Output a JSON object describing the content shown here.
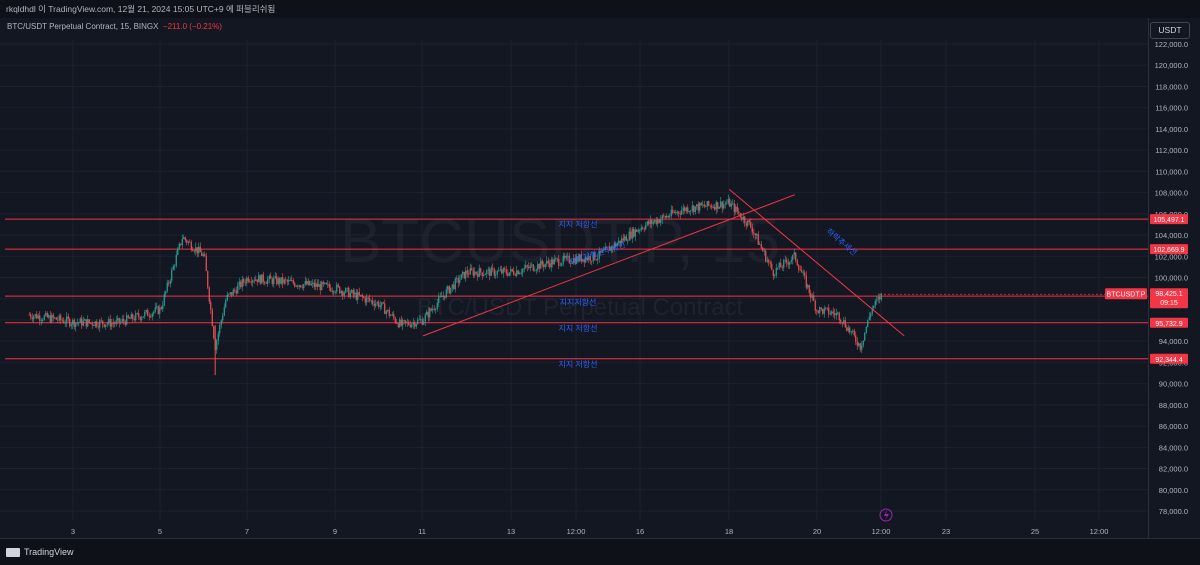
{
  "header": {
    "title": "rkqldhdl 이 TradingView.com, 12월 21, 2024 15:05 UTC+9 에 퍼블리쉬됨"
  },
  "symbol": {
    "label": "BTC/USDT Perpetual Contract, 15, BINGX",
    "change": "−211.0 (−0.21%)"
  },
  "watermark": {
    "main": "BTCUSDT.P, 15",
    "sub": "BTC/USDT Perpetual Contract"
  },
  "currency_button": "USDT",
  "footer": {
    "brand": "TradingView"
  },
  "colors": {
    "background": "#131722",
    "up": "#26a69a",
    "down": "#ef5350",
    "line": "#f23645",
    "annotation": "#2962ff"
  },
  "price_scale": {
    "ticks": [
      "122,000.0",
      "120,000.0",
      "118,000.0",
      "116,000.0",
      "114,000.0",
      "112,000.0",
      "110,000.0",
      "108,000.0",
      "106,000.0",
      "104,000.0",
      "102,000.0",
      "100,000.0",
      "98,000.0",
      "96,000.0",
      "94,000.0",
      "92,000.0",
      "90,000.0",
      "88,000.0",
      "86,000.0",
      "84,000.0",
      "82,000.0",
      "80,000.0",
      "78,000.0"
    ]
  },
  "time_scale": {
    "ticks": [
      "3",
      "5",
      "7",
      "9",
      "11",
      "13",
      "12:00",
      "16",
      "18",
      "20",
      "12:00",
      "23",
      "25",
      "12:00"
    ]
  },
  "price_labels": [
    {
      "text": "105,497.1",
      "value": 105497.1
    },
    {
      "text": "102,669.9",
      "value": 102669.9
    },
    {
      "text": "98,244.7",
      "value": 98244.7
    },
    {
      "text": "95,732.9",
      "value": 95732.9
    },
    {
      "text": "92,344.4",
      "value": 92344.4
    }
  ],
  "current_price": {
    "symbol": "BTCUSDT.P",
    "price": "98,425.1",
    "countdown": "09:15",
    "value": 98425.1
  },
  "annotations": [
    "지지 저항선",
    "지지저항선추세선",
    "지지저항선",
    "지지 저항선",
    "지지 저항선",
    "하락추세선"
  ],
  "chart_data": {
    "type": "candlestick",
    "symbol": "BTC/USDT Perpetual Contract",
    "interval": "15",
    "ylim": [
      77000,
      123000
    ],
    "horizontal_levels": [
      105497.1,
      102669.9,
      98244.7,
      95732.9,
      92344.4
    ],
    "trendlines": [
      {
        "name": "상승 추세선",
        "from": {
          "date": "Dec 11",
          "price": 94500
        },
        "to": {
          "date": "Dec 19 12:00",
          "price": 107800
        }
      },
      {
        "name": "하락추세선",
        "from": {
          "date": "Dec 18",
          "price": 108300
        },
        "to": {
          "date": "Dec 22",
          "price": 94500
        }
      }
    ],
    "price_path": [
      {
        "x": "Dec 2",
        "y": 96500
      },
      {
        "x": "Dec 3",
        "y": 95800
      },
      {
        "x": "Dec 4",
        "y": 95700
      },
      {
        "x": "Dec 5",
        "y": 97000
      },
      {
        "x": "Dec 5 12:00",
        "y": 103800
      },
      {
        "x": "Dec 6",
        "y": 102000
      },
      {
        "x": "Dec 6 06:00",
        "y": 93500
      },
      {
        "x": "Dec 6 12:00",
        "y": 98000
      },
      {
        "x": "Dec 7",
        "y": 100000
      },
      {
        "x": "Dec 8",
        "y": 99500
      },
      {
        "x": "Dec 9",
        "y": 99000
      },
      {
        "x": "Dec 10",
        "y": 97500
      },
      {
        "x": "Dec 10 12:00",
        "y": 95500
      },
      {
        "x": "Dec 11",
        "y": 96000
      },
      {
        "x": "Dec 11 12:00",
        "y": 98500
      },
      {
        "x": "Dec 12",
        "y": 100500
      },
      {
        "x": "Dec 13",
        "y": 100500
      },
      {
        "x": "Dec 14",
        "y": 101500
      },
      {
        "x": "Dec 15",
        "y": 102000
      },
      {
        "x": "Dec 16",
        "y": 104800
      },
      {
        "x": "Dec 17",
        "y": 106500
      },
      {
        "x": "Dec 18",
        "y": 107000
      },
      {
        "x": "Dec 18 12:00",
        "y": 104800
      },
      {
        "x": "Dec 19",
        "y": 100500
      },
      {
        "x": "Dec 19 12:00",
        "y": 102000
      },
      {
        "x": "Dec 20",
        "y": 97000
      },
      {
        "x": "Dec 20 12:00",
        "y": 96500
      },
      {
        "x": "Dec 21",
        "y": 93500
      },
      {
        "x": "Dec 21 06:00",
        "y": 97000
      },
      {
        "x": "Dec 21 12:00",
        "y": 98425.1
      }
    ]
  }
}
